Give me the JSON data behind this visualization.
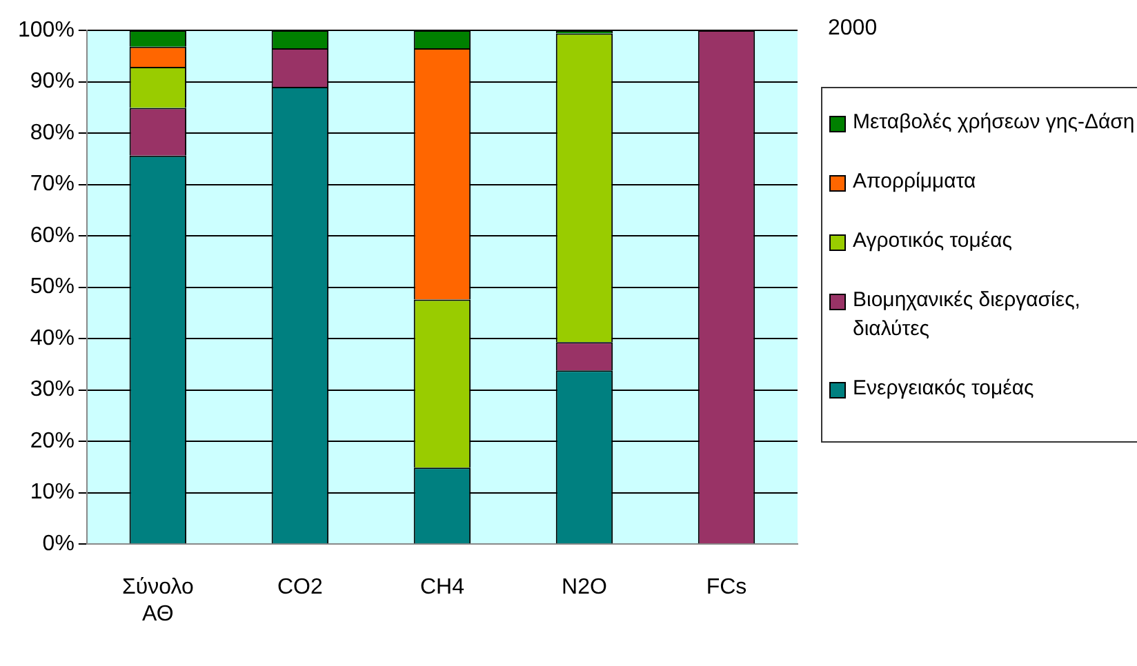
{
  "chart_data": {
    "type": "bar",
    "title": "2000",
    "stacked": true,
    "categories": [
      "Σύνολο ΑΘ",
      "CO2",
      "CH4",
      "N2O",
      "FCs"
    ],
    "series": [
      {
        "name": "Ενεργειακός τομέας",
        "color": "#008080",
        "values": [
          75.6,
          89.0,
          14.9,
          33.8,
          0
        ]
      },
      {
        "name": "Βιομηχανικές διεργασίες, διαλύτες",
        "color": "#993366",
        "values": [
          9.3,
          7.5,
          0,
          5.5,
          100
        ]
      },
      {
        "name": "Αγροτικός τομέας",
        "color": "#99cc00",
        "values": [
          8.0,
          0,
          32.7,
          60.1,
          0
        ]
      },
      {
        "name": "Απορρίμματα",
        "color": "#ff6600",
        "values": [
          3.9,
          0,
          48.9,
          0,
          0
        ]
      },
      {
        "name": "Μεταβολές χρήσεων γης-Δάση",
        "color": "#008000",
        "values": [
          3.2,
          3.5,
          3.5,
          0.6,
          0
        ]
      }
    ],
    "ylim": [
      0,
      100
    ],
    "yticks": [
      {
        "value": 0,
        "label": "0%"
      },
      {
        "value": 10,
        "label": "10%"
      },
      {
        "value": 20,
        "label": "20%"
      },
      {
        "value": 30,
        "label": "30%"
      },
      {
        "value": 40,
        "label": "40%"
      },
      {
        "value": 50,
        "label": "50%"
      },
      {
        "value": 60,
        "label": "60%"
      },
      {
        "value": 70,
        "label": "70%"
      },
      {
        "value": 80,
        "label": "80%"
      },
      {
        "value": 90,
        "label": "90%"
      },
      {
        "value": 100,
        "label": "100%"
      }
    ],
    "grid": "y",
    "legend": "right"
  }
}
